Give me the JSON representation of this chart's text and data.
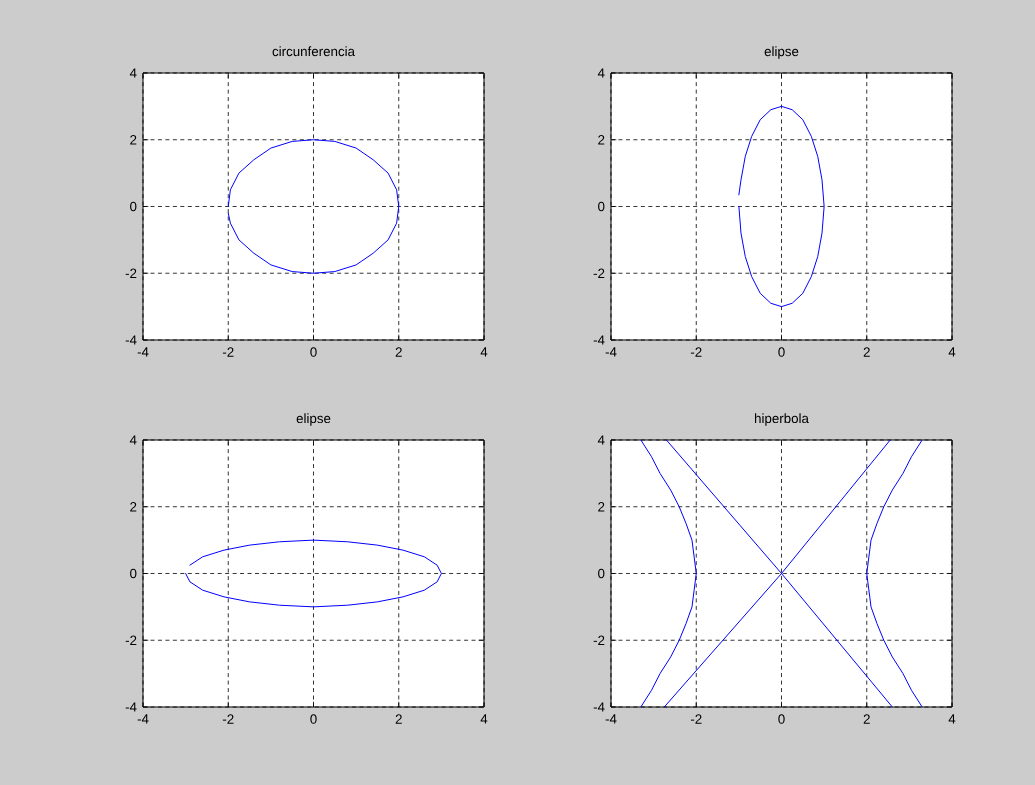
{
  "chart_data": [
    {
      "type": "line",
      "title": "circunferencia",
      "xlim": [
        -4,
        4
      ],
      "ylim": [
        -4,
        4
      ],
      "xticks": [
        -4,
        -2,
        0,
        2,
        4
      ],
      "yticks": [
        -4,
        -2,
        0,
        2,
        4
      ],
      "grid": true,
      "series": [
        {
          "color": "#0000ff",
          "x": [
            -2,
            -1.95,
            -1.75,
            -1.4,
            -1,
            -0.5,
            0,
            0.5,
            1,
            1.4,
            1.75,
            1.95,
            2,
            1.95,
            1.75,
            1.4,
            1,
            0.5,
            0,
            -0.5,
            -1,
            -1.4,
            -1.75,
            -1.95,
            -2
          ],
          "values": [
            -0.2,
            -0.5,
            -1,
            -1.4,
            -1.75,
            -1.95,
            -2,
            -1.95,
            -1.75,
            -1.4,
            -1,
            -0.5,
            0,
            0.5,
            1,
            1.4,
            1.75,
            1.95,
            2,
            1.95,
            1.75,
            1.4,
            1,
            0.5,
            0
          ]
        }
      ]
    },
    {
      "type": "line",
      "title": "elipse",
      "xlim": [
        -4,
        4
      ],
      "ylim": [
        -4,
        4
      ],
      "xticks": [
        -4,
        -2,
        0,
        2,
        4
      ],
      "yticks": [
        -4,
        -2,
        0,
        2,
        4
      ],
      "grid": true,
      "series": [
        {
          "color": "#0000ff",
          "x": [
            -1,
            -0.95,
            -0.85,
            -0.7,
            -0.5,
            -0.25,
            0,
            0.25,
            0.5,
            0.7,
            0.85,
            0.95,
            1,
            0.95,
            0.85,
            0.7,
            0.5,
            0.25,
            0,
            -0.25,
            -0.5,
            -0.7,
            -0.85,
            -0.95,
            -1
          ],
          "values": [
            0,
            -0.8,
            -1.5,
            -2.1,
            -2.6,
            -2.9,
            -3,
            -2.9,
            -2.6,
            -2.1,
            -1.5,
            -0.8,
            0,
            0.8,
            1.5,
            2.1,
            2.6,
            2.9,
            3,
            2.9,
            2.6,
            2.1,
            1.5,
            0.8,
            0.35
          ]
        }
      ]
    },
    {
      "type": "line",
      "title": "elipse",
      "xlim": [
        -4,
        4
      ],
      "ylim": [
        -4,
        4
      ],
      "xticks": [
        -4,
        -2,
        0,
        2,
        4
      ],
      "yticks": [
        -4,
        -2,
        0,
        2,
        4
      ],
      "grid": true,
      "series": [
        {
          "color": "#0000ff",
          "x": [
            -3,
            -2.9,
            -2.6,
            -2.1,
            -1.5,
            -0.8,
            0,
            0.8,
            1.5,
            2.1,
            2.6,
            2.9,
            3,
            2.9,
            2.6,
            2.1,
            1.5,
            0.8,
            0,
            -0.8,
            -1.5,
            -2.1,
            -2.6,
            -2.9
          ],
          "values": [
            0,
            -0.25,
            -0.5,
            -0.7,
            -0.85,
            -0.95,
            -1,
            -0.95,
            -0.85,
            -0.7,
            -0.5,
            -0.25,
            0,
            0.25,
            0.5,
            0.7,
            0.85,
            0.95,
            1,
            0.95,
            0.85,
            0.7,
            0.5,
            0.25
          ]
        }
      ]
    },
    {
      "type": "line",
      "title": "hiperbola",
      "xlim": [
        -4,
        4
      ],
      "ylim": [
        -4,
        4
      ],
      "xticks": [
        -4,
        -2,
        0,
        2,
        4
      ],
      "yticks": [
        -4,
        -2,
        0,
        2,
        4
      ],
      "grid": true,
      "series": [
        {
          "color": "#0000ff",
          "x": [
            3.3,
            3.05,
            2.85,
            2.6,
            2.4,
            2.24,
            2.1,
            2.05,
            2,
            2.05,
            2.1,
            2.24,
            2.4,
            2.6,
            2.85,
            3.05,
            3.3
          ],
          "values": [
            4,
            3.5,
            3,
            2.5,
            2,
            1.5,
            1,
            0.5,
            0,
            -0.5,
            -1,
            -1.5,
            -2,
            -2.5,
            -3,
            -3.5,
            -4
          ]
        },
        {
          "color": "#0000ff",
          "x": [
            -3.3,
            -3.05,
            -2.85,
            -2.6,
            -2.4,
            -2.24,
            -2.1,
            -2.05,
            -2,
            -2.05,
            -2.1,
            -2.24,
            -2.4,
            -2.6,
            -2.85,
            -3.05,
            -3.3
          ],
          "values": [
            4,
            3.5,
            3,
            2.5,
            2,
            1.5,
            1,
            0.5,
            0,
            -0.5,
            -1,
            -1.5,
            -2,
            -2.5,
            -3,
            -3.5,
            -4
          ]
        },
        {
          "color": "#0000ff",
          "x": [
            -2.7,
            0,
            2.6
          ],
          "values": [
            4,
            0,
            -4
          ]
        },
        {
          "color": "#0000ff",
          "x": [
            -2.75,
            0,
            2.55
          ],
          "values": [
            -4,
            0,
            4
          ]
        }
      ]
    }
  ]
}
